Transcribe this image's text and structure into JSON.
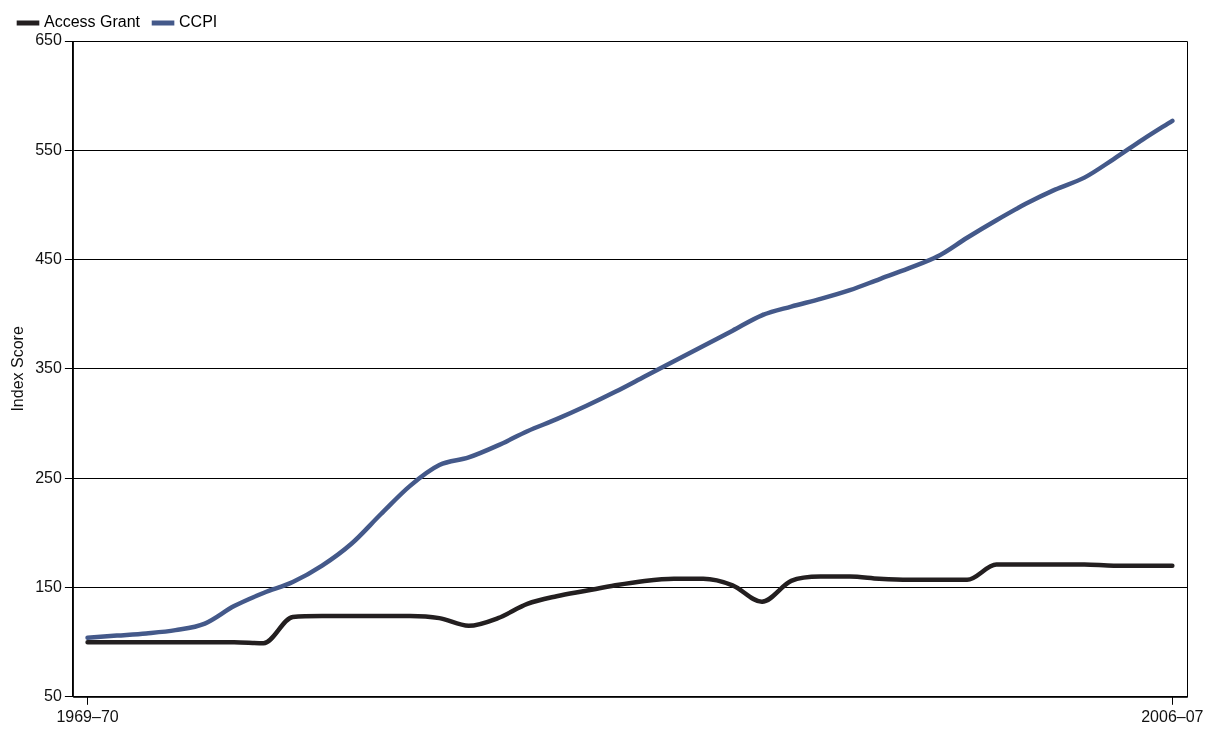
{
  "chart_data": {
    "type": "line",
    "ylabel": "Index Score",
    "categories": [
      "1969–70",
      null,
      null,
      null,
      null,
      null,
      null,
      null,
      null,
      null,
      null,
      null,
      null,
      null,
      null,
      null,
      null,
      null,
      null,
      null,
      null,
      null,
      null,
      null,
      null,
      null,
      null,
      null,
      null,
      null,
      null,
      null,
      null,
      null,
      null,
      null,
      null,
      "2006–07"
    ],
    "series": [
      {
        "name": "Access Grant",
        "color": "#231f20",
        "values": [
          100,
          100,
          100,
          100,
          100,
          100,
          99,
          123,
          124,
          124,
          124,
          124,
          122,
          115,
          122,
          135,
          142,
          147,
          152,
          156,
          158,
          158,
          152,
          137,
          156,
          160,
          160,
          158,
          157,
          157,
          157,
          171,
          171,
          171,
          171,
          170,
          170,
          170
        ]
      },
      {
        "name": "CCPI",
        "color": "#44598a",
        "values": [
          104,
          106,
          108,
          111,
          117,
          133,
          145,
          155,
          170,
          190,
          217,
          243,
          262,
          269,
          280,
          293,
          304,
          316,
          329,
          343,
          357,
          371,
          385,
          399,
          407,
          414,
          422,
          432,
          442,
          453,
          470,
          486,
          501,
          514,
          525,
          542,
          560,
          577
        ]
      }
    ],
    "ylim": [
      50,
      650
    ],
    "yticks": [
      50,
      150,
      250,
      350,
      450,
      550,
      650
    ],
    "grid": "y",
    "legend": "top left",
    "marker": "none",
    "line_style": "solid"
  }
}
